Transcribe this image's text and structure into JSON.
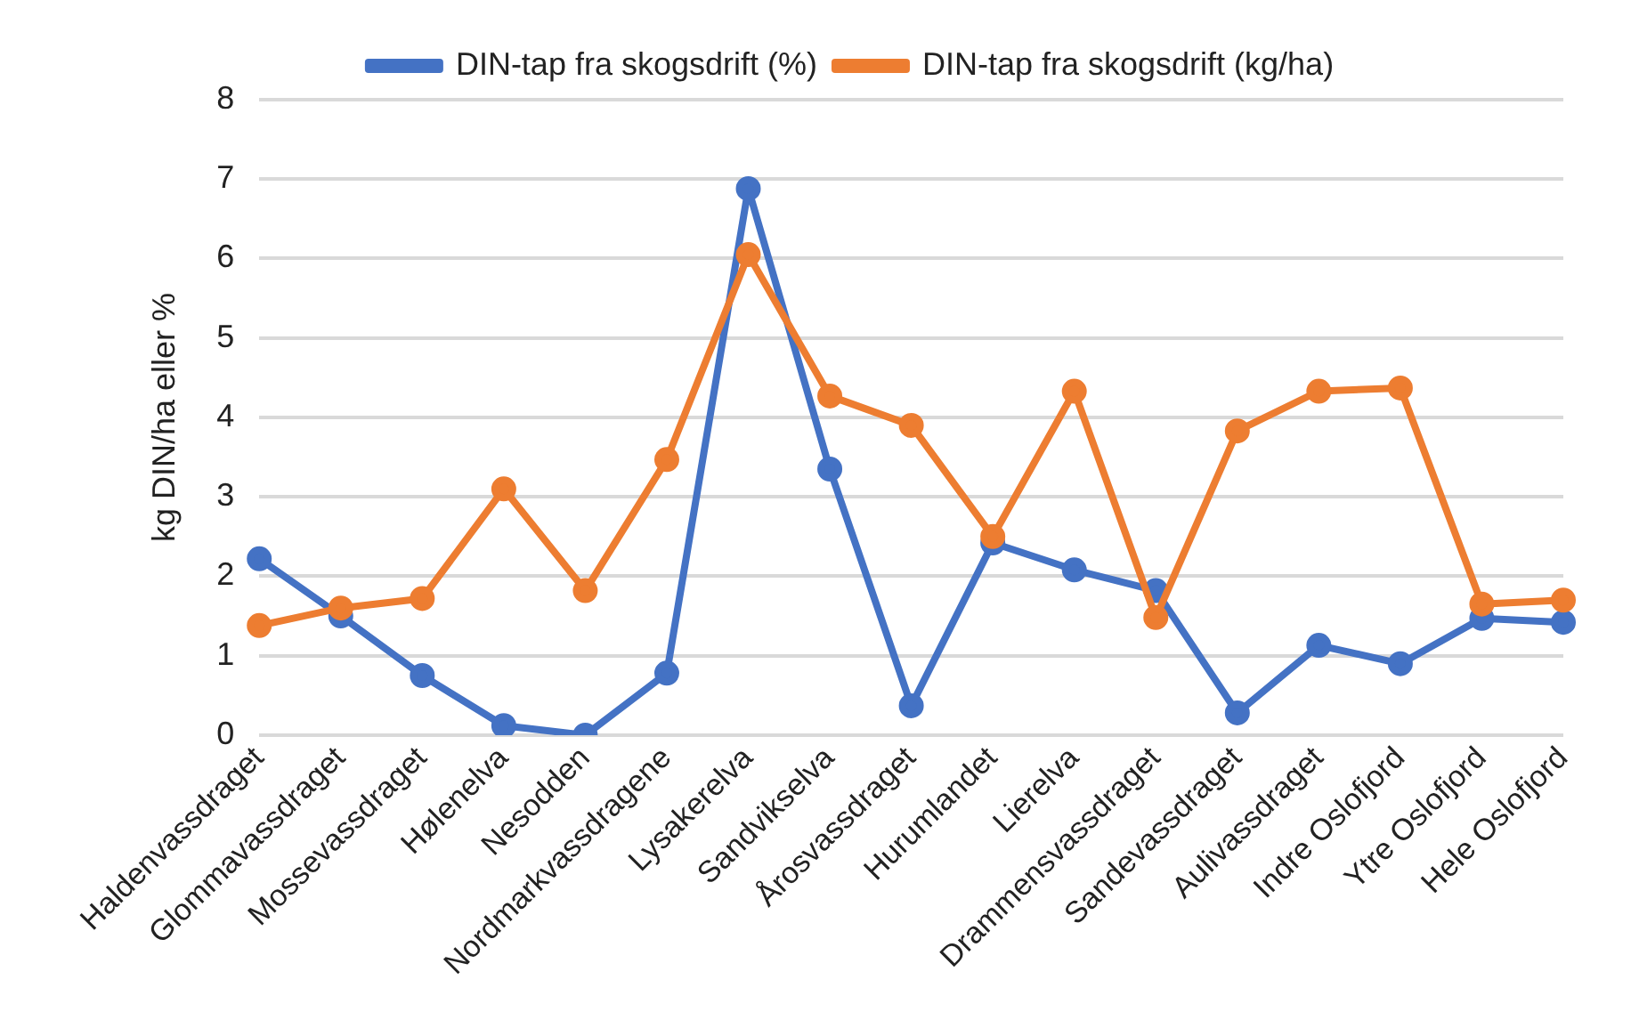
{
  "chart_data": {
    "type": "line",
    "ylabel": "kg DIN/ha eller %",
    "categories": [
      "Haldenvassdraget",
      "Glommavassdraget",
      "Mossevassdraget",
      "Hølenelva",
      "Nesodden",
      "Nordmarkvassdragene",
      "Lysakerelva",
      "Sandvikselva",
      "Årosvassdraget",
      "Hurumlandet",
      "Lierelva",
      "Drammensvassdraget",
      "Sandevassdraget",
      "Aulivassdraget",
      "Indre Oslofjord",
      "Ytre Oslofjord",
      "Hele Oslofjord"
    ],
    "series": [
      {
        "name": "DIN-tap fra skogsdrift (%)",
        "color": "#4472c4",
        "values": [
          2.22,
          1.5,
          0.75,
          0.12,
          0.0,
          0.78,
          6.88,
          3.35,
          0.37,
          2.42,
          2.08,
          1.82,
          0.28,
          1.13,
          0.9,
          1.47,
          1.42
        ]
      },
      {
        "name": "DIN-tap fra skogsdrift (kg/ha)",
        "color": "#ed7d31",
        "values": [
          1.38,
          1.6,
          1.72,
          3.1,
          1.82,
          3.47,
          6.05,
          4.27,
          3.9,
          2.5,
          4.33,
          1.48,
          3.83,
          4.33,
          4.37,
          1.65,
          1.7
        ]
      }
    ],
    "ylim": [
      0,
      8
    ],
    "yticks": [
      0,
      1,
      2,
      3,
      4,
      5,
      6,
      7,
      8
    ],
    "grid": "y",
    "legend": "top",
    "marker": "circle",
    "line_style": "solid"
  }
}
